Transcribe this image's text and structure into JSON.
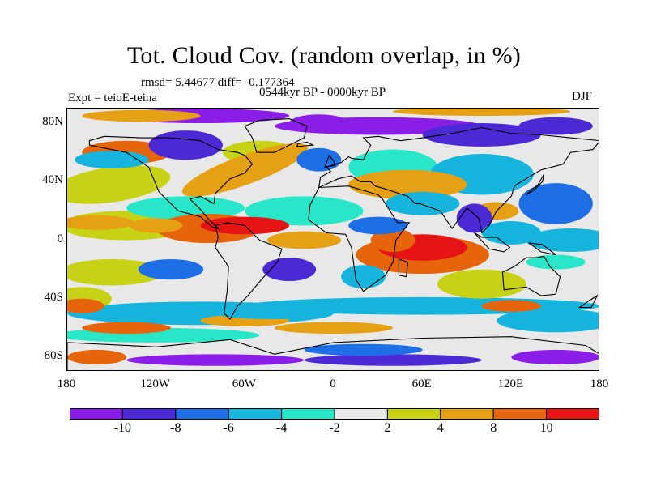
{
  "title": "Tot. Cloud Cov. (random overlap, in %)",
  "stats_text": "rmsd= 5.44677 diff= -0.177364",
  "period_text": "0544kyr BP - 0000kyr BP",
  "experiment_text": "Expt = teioE-teina",
  "season_text": "DJF",
  "lat_labels": [
    "80N",
    "40N",
    "0",
    "40S",
    "80S"
  ],
  "lat_values": [
    80,
    40,
    0,
    -40,
    -80
  ],
  "lon_labels": [
    "180",
    "120W",
    "60W",
    "0",
    "60E",
    "120E",
    "180"
  ],
  "lon_values": [
    -180,
    -120,
    -60,
    0,
    60,
    120,
    180
  ],
  "colorbar": {
    "labels": [
      "-10",
      "-8",
      "-6",
      "-4",
      "-2",
      "2",
      "4",
      "8",
      "10"
    ],
    "colors": [
      "#8a1ee6",
      "#4b2ad6",
      "#1e6ee6",
      "#14b4dc",
      "#28e6c8",
      "#eaeaea",
      "#c8d214",
      "#e6a014",
      "#e6640a",
      "#e61414"
    ]
  },
  "colors": {
    "background": "#ffffff",
    "neutral": "#eaeaea"
  }
}
